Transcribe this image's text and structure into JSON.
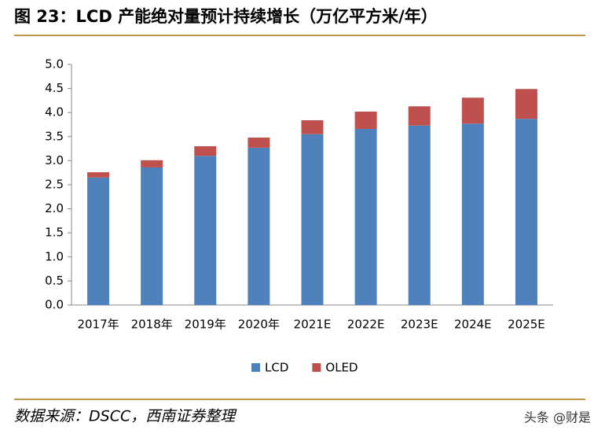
{
  "chart_data": {
    "type": "stacked_bar",
    "title": "图 23：LCD 产能绝对量预计持续增长（万亿平方米/年）",
    "categories": [
      "2017年",
      "2018年",
      "2019年",
      "2020年",
      "2021E",
      "2022E",
      "2023E",
      "2024E",
      "2025E"
    ],
    "series": [
      {
        "name": "LCD",
        "color": "#4f81bd",
        "values": [
          2.65,
          2.86,
          3.1,
          3.27,
          3.55,
          3.66,
          3.73,
          3.77,
          3.87
        ]
      },
      {
        "name": "OLED",
        "color": "#c0504d",
        "values": [
          0.11,
          0.15,
          0.2,
          0.21,
          0.29,
          0.36,
          0.4,
          0.54,
          0.62
        ]
      }
    ],
    "ylim": [
      0,
      5
    ],
    "yticks": [
      {
        "value": 0,
        "label": "0.0"
      },
      0.5,
      {
        "value": 1,
        "label": "1.0"
      },
      1.5,
      {
        "value": 2,
        "label": "2.0"
      },
      2.5,
      {
        "value": 3,
        "label": "3.0"
      },
      3.5,
      {
        "value": 4,
        "label": "4.0"
      },
      4.5,
      {
        "value": 5,
        "label": "5.0"
      }
    ],
    "legend": "bottom",
    "source": "数据来源：DSCC，西南证券整理",
    "watermark": "头条 @财是"
  }
}
